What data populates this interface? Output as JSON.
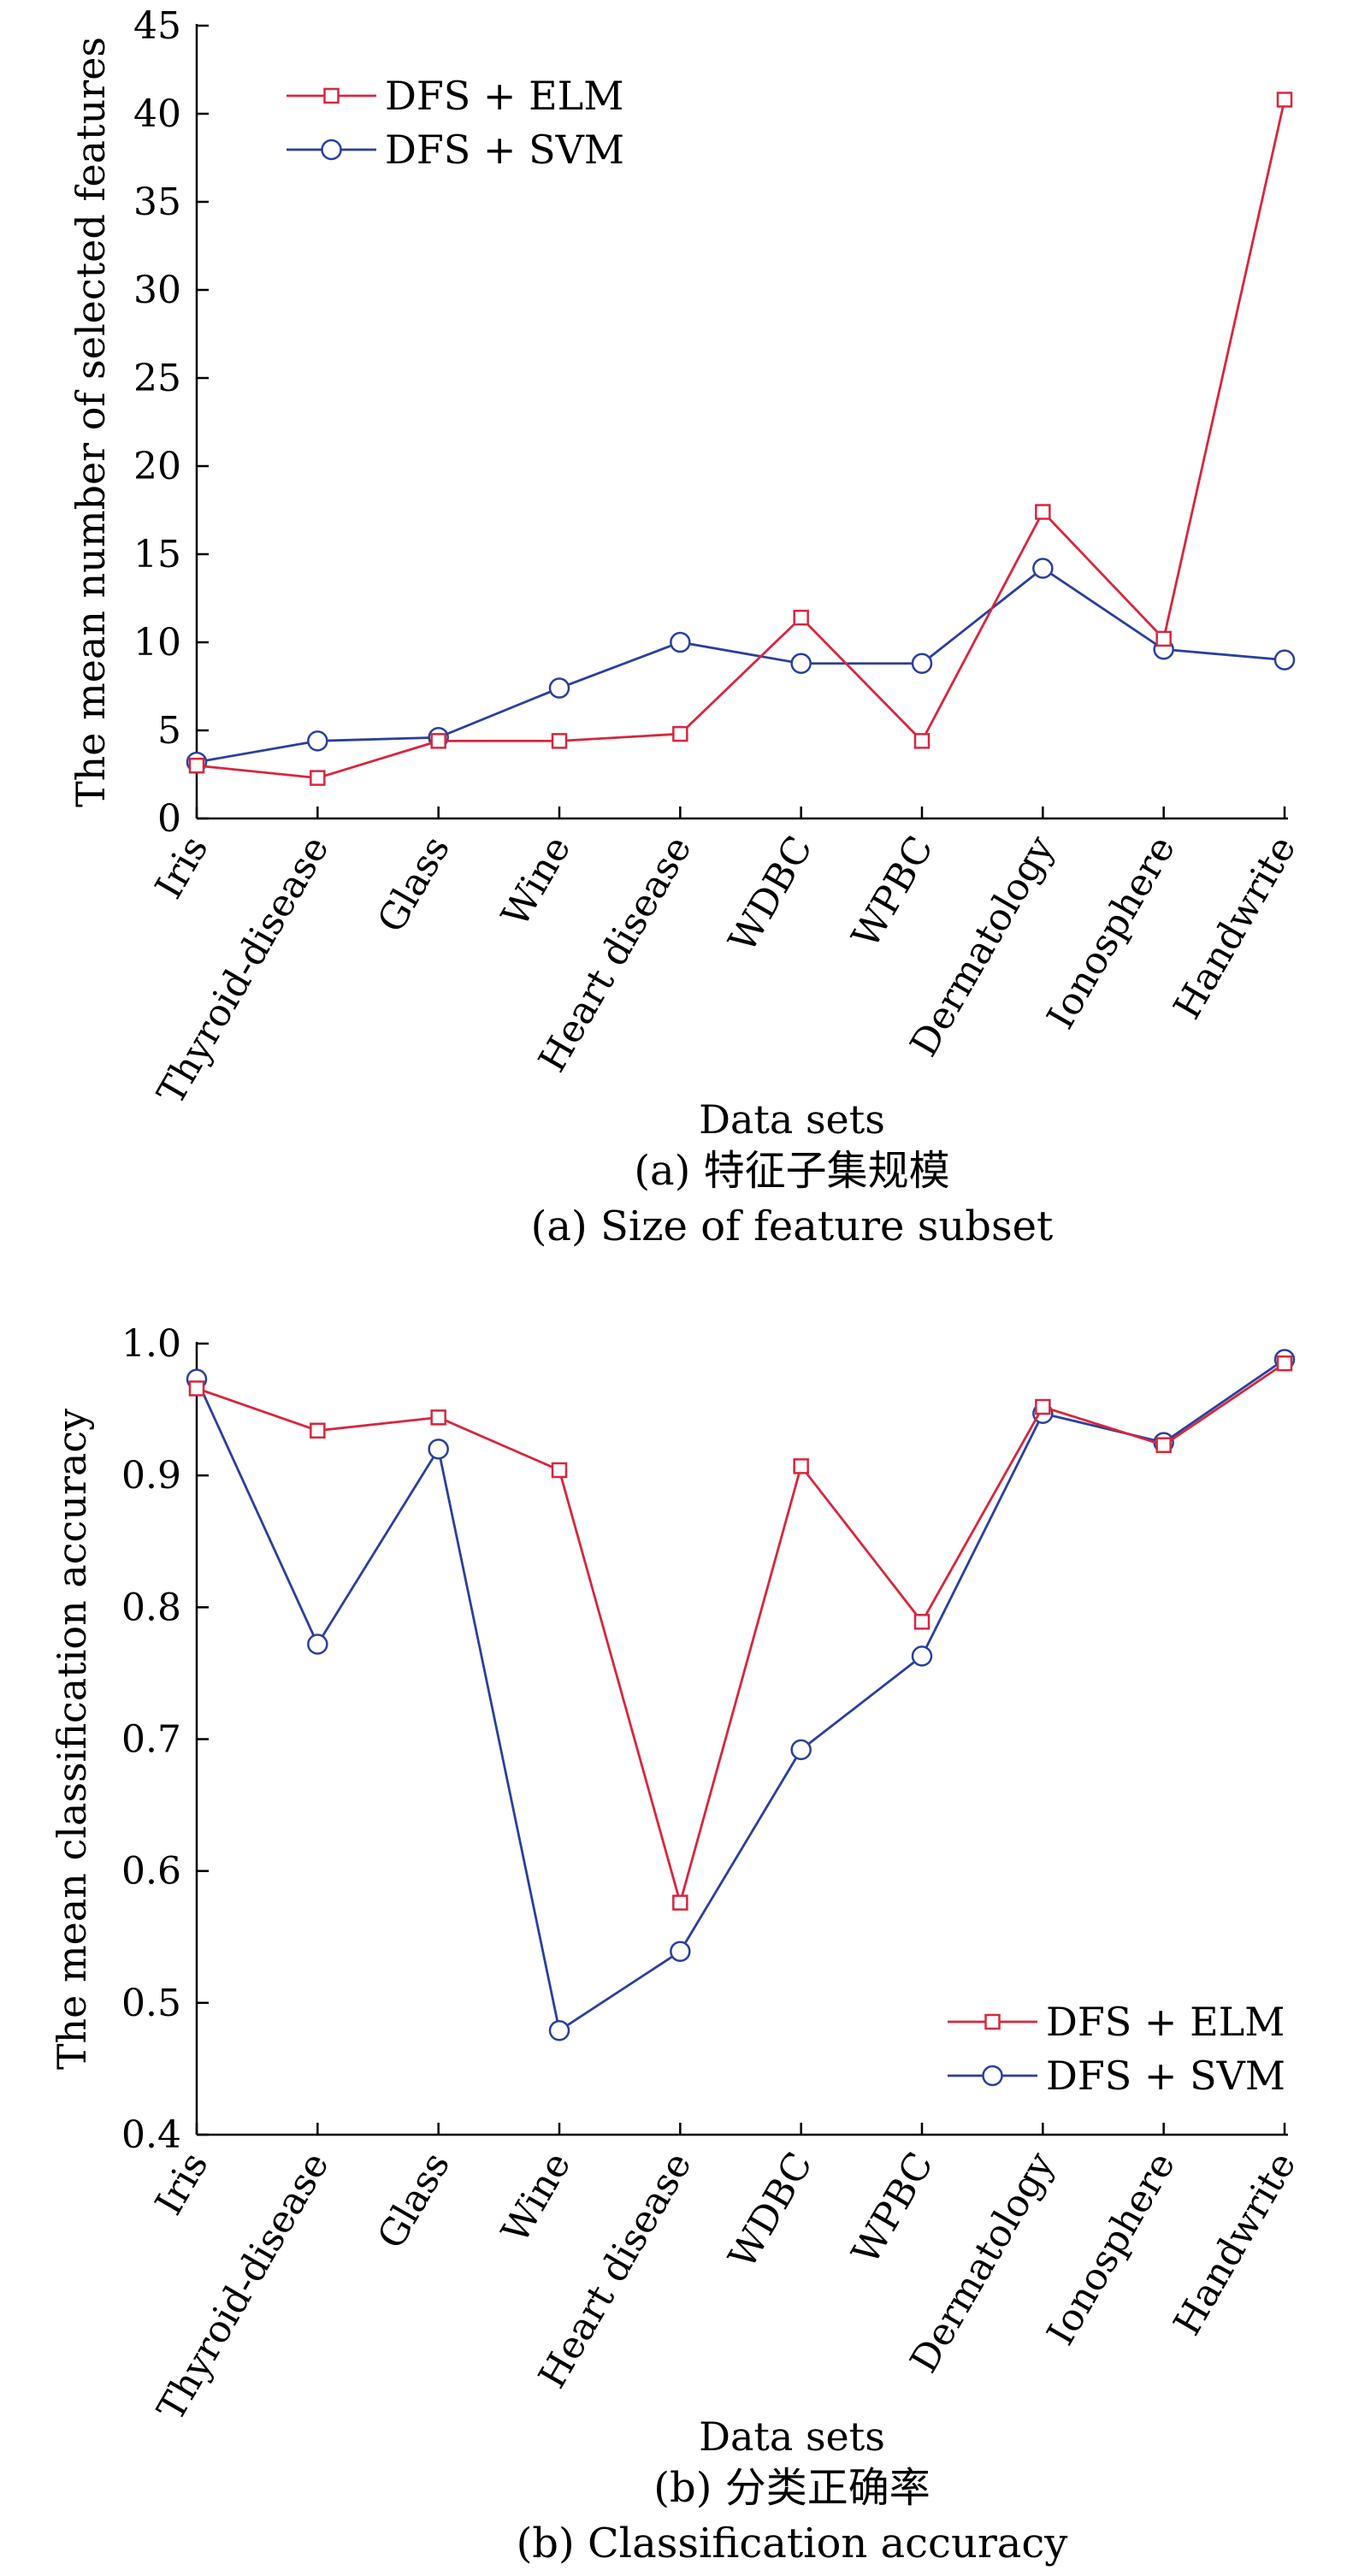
{
  "chart_data": [
    {
      "type": "line",
      "categories": [
        "Iris",
        "Thyroid-disease",
        "Glass",
        "Wine",
        "Heart disease",
        "WDBC",
        "WPBC",
        "Dermatology",
        "Ionosphere",
        "Handwrite"
      ],
      "series": [
        {
          "name": "DFS + ELM",
          "color": "#d7263d",
          "marker": "square",
          "x": [
            1.0,
            2.0,
            3.0,
            4.0,
            5.0,
            6.0,
            7.0,
            8.0,
            9.0,
            10.0
          ],
          "values": [
            3.0,
            2.3,
            4.4,
            4.4,
            4.8,
            11.4,
            4.4,
            17.4,
            10.2,
            40.8
          ]
        },
        {
          "name": "DFS + SVM",
          "color": "#2b3f9c",
          "marker": "circle",
          "x": [
            1.0,
            2.0,
            3.0,
            4.0,
            5.0,
            6.0,
            7.0,
            8.0,
            9.0,
            10.0
          ],
          "values": [
            3.2,
            4.4,
            4.6,
            7.4,
            10.0,
            8.8,
            8.8,
            14.2,
            9.6,
            9.0
          ]
        }
      ],
      "ylim": [
        0,
        45
      ],
      "yticks": [
        0,
        5,
        10,
        15,
        20,
        25,
        30,
        35,
        40,
        45
      ],
      "ytick_labels": [
        "0",
        "5",
        "10",
        "15",
        "20",
        "25",
        "30",
        "35",
        "40",
        "45"
      ],
      "xlabel": "Data sets",
      "ylabel": "The mean number of selected features",
      "captions": [
        "(a) 特征子集规模",
        "(a) Size of feature subset"
      ],
      "legend": "top-left"
    },
    {
      "type": "line",
      "categories": [
        "Iris",
        "Thyroid-disease",
        "Glass",
        "Wine",
        "Heart disease",
        "WDBC",
        "WPBC",
        "Dermatology",
        "Ionosphere",
        "Handwrite"
      ],
      "series": [
        {
          "name": "DFS + ELM",
          "color": "#d7263d",
          "marker": "square",
          "x": [
            1.0,
            2.0,
            3.0,
            4.0,
            5.0,
            6.0,
            7.0,
            8.0,
            9.0,
            10.0
          ],
          "values": [
            0.966,
            0.934,
            0.944,
            0.904,
            0.576,
            0.907,
            0.789,
            0.952,
            0.923,
            0.985
          ]
        },
        {
          "name": "DFS + SVM",
          "color": "#2b3f9c",
          "marker": "circle",
          "x": [
            1.0,
            2.0,
            3.0,
            4.0,
            5.0,
            6.0,
            7.0,
            8.0,
            9.0,
            10.0
          ],
          "values": [
            0.973,
            0.772,
            0.92,
            0.479,
            0.539,
            0.692,
            0.763,
            0.947,
            0.925,
            0.988
          ]
        }
      ],
      "ylim": [
        0.4,
        1.0
      ],
      "yticks": [
        0.4,
        0.5,
        0.6,
        0.7,
        0.8,
        0.9,
        1.0
      ],
      "ytick_labels": [
        "0.4",
        "0.5",
        "0.6",
        "0.7",
        "0.8",
        "0.9",
        "1.0"
      ],
      "xlabel": "Data sets",
      "ylabel": "The mean classification accuracy",
      "captions": [
        "(b) 分类正确率",
        "(b) Classification accuracy"
      ],
      "legend": "bottom-right"
    }
  ]
}
